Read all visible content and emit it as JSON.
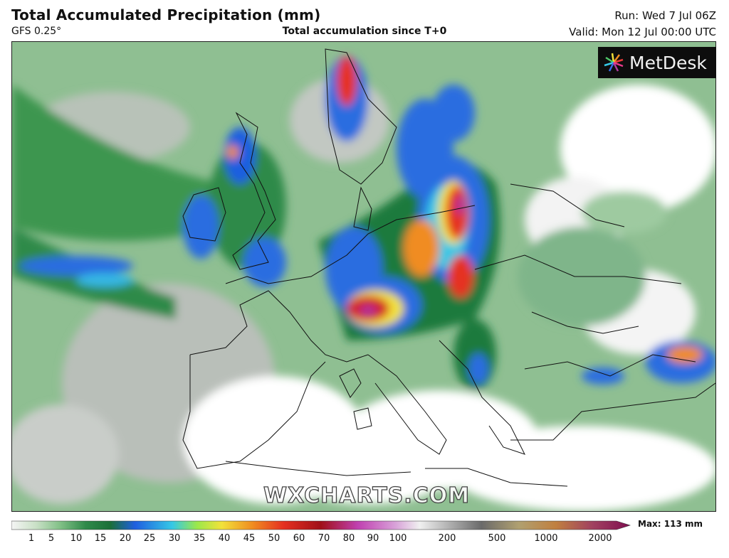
{
  "header": {
    "title": "Total Accumulated Precipitation (mm)",
    "model": "GFS 0.25°",
    "subtitle": "Total accumulation since T+0",
    "run": "Run: Wed 7 Jul 06Z",
    "valid": "Valid: Mon 12 Jul 00:00 UTC"
  },
  "logo": {
    "text": "MetDesk",
    "icon": "starburst-logo-icon"
  },
  "watermark": "WXCHARTS.COM",
  "legend": {
    "max_label": "Max: 113 mm",
    "ticks": [
      "1",
      "5",
      "10",
      "15",
      "20",
      "25",
      "30",
      "35",
      "40",
      "45",
      "50",
      "60",
      "70",
      "80",
      "90",
      "100",
      "200",
      "500",
      "1000",
      "2000"
    ],
    "colors": {
      "light_green": "#9dc49a",
      "mid_green": "#4f9c57",
      "dark_green": "#1b7a3c",
      "blue": "#1f5fe0",
      "cyan": "#35c8e6",
      "yellow": "#f2e23a",
      "orange": "#f08c20",
      "red": "#d42020",
      "magenta": "#b0309a",
      "grey": "#9b9b9b",
      "white": "#ffffff"
    }
  }
}
